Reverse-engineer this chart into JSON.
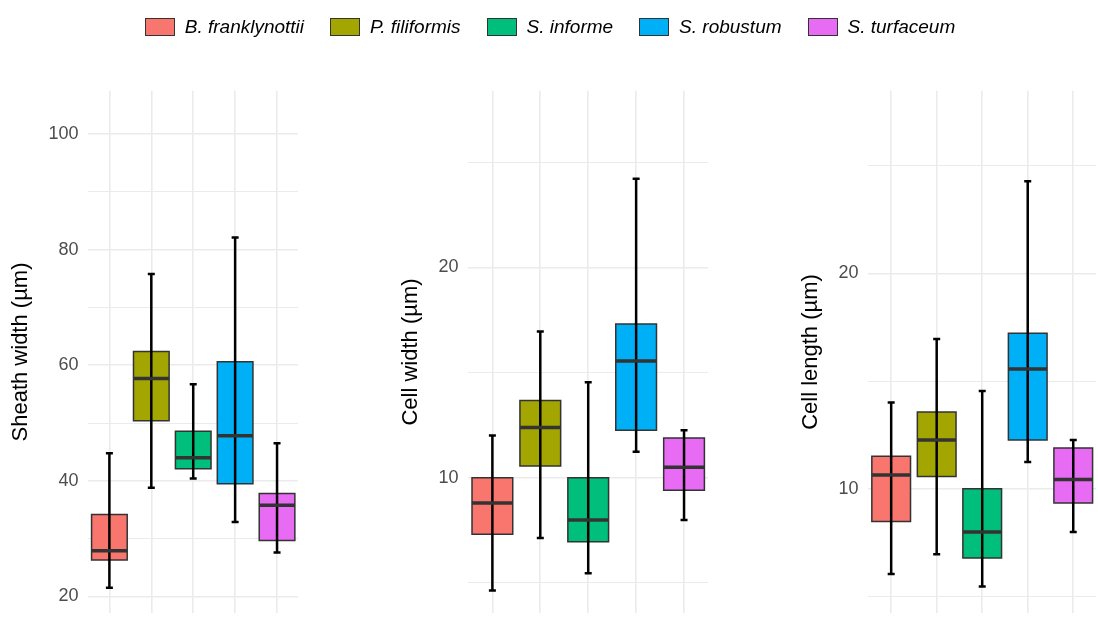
{
  "chart_data": [
    {
      "type": "box",
      "ylabel": "Sheath width (µm)",
      "categories": [
        null,
        null,
        null,
        null,
        null
      ],
      "ylim": [
        17.1,
        107.5
      ],
      "yticks": [
        20,
        {
          "value": 30,
          "label": null
        },
        40,
        {
          "value": 50,
          "label": null
        },
        60,
        {
          "value": 70,
          "label": null
        },
        80,
        {
          "value": 90,
          "label": null
        },
        100
      ],
      "grid": true,
      "legend": "top",
      "tick_labels": "y",
      "series": [
        {
          "name": "B. franklynottii",
          "color": "#f8766d",
          "boxes": [
            {
              "low": 21.5,
              "q1": 26.3,
              "median": 27.9,
              "q3": 34.2,
              "high": 44.8
            },
            null,
            null,
            null,
            null
          ]
        },
        {
          "name": "P. filiformis",
          "color": "#a3a500",
          "boxes": [
            null,
            {
              "low": 38.8,
              "q1": 50.4,
              "median": 57.7,
              "q3": 62.4,
              "high": 75.8
            },
            null,
            null,
            null
          ]
        },
        {
          "name": "S. informe",
          "color": "#00bf7d",
          "boxes": [
            null,
            null,
            {
              "low": 40.4,
              "q1": 42.1,
              "median": 44.0,
              "q3": 48.6,
              "high": 56.7
            },
            null,
            null
          ]
        },
        {
          "name": "S. robustum",
          "color": "#00b0f6",
          "boxes": [
            null,
            null,
            null,
            {
              "low": 32.9,
              "q1": 39.5,
              "median": 47.8,
              "q3": 60.6,
              "high": 82.1
            },
            null
          ]
        },
        {
          "name": "S. turfaceum",
          "color": "#e76bf3",
          "boxes": [
            null,
            null,
            null,
            null,
            {
              "low": 27.6,
              "q1": 29.7,
              "median": 35.8,
              "q3": 37.8,
              "high": 46.5
            }
          ]
        }
      ]
    },
    {
      "type": "box",
      "ylabel": "Cell width (µm)",
      "categories": [
        null,
        null,
        null,
        null,
        null
      ],
      "log": true,
      "ylim": [
        6.4,
        35.8
      ],
      "yticks": [
        {
          "value": 7.07,
          "label": null
        },
        10,
        {
          "value": 14.14,
          "label": null
        },
        20,
        {
          "value": 28.28,
          "label": null
        }
      ],
      "grid": true,
      "tick_labels": "y",
      "series": [
        {
          "color": "#f8766d",
          "boxes": [
            {
              "low": 6.9,
              "q1": 8.3,
              "median": 9.2,
              "q3": 10.0,
              "high": 11.5
            },
            null,
            null,
            null,
            null
          ]
        },
        {
          "color": "#a3a500",
          "boxes": [
            null,
            {
              "low": 8.2,
              "q1": 10.4,
              "median": 11.8,
              "q3": 12.9,
              "high": 16.2
            },
            null,
            null,
            null
          ]
        },
        {
          "color": "#00bf7d",
          "boxes": [
            null,
            null,
            {
              "low": 7.3,
              "q1": 8.1,
              "median": 8.7,
              "q3": 10.0,
              "high": 13.7
            },
            null,
            null
          ]
        },
        {
          "color": "#00b0f6",
          "boxes": [
            null,
            null,
            null,
            {
              "low": 10.9,
              "q1": 11.7,
              "median": 14.7,
              "q3": 16.6,
              "high": 26.8
            },
            null
          ]
        },
        {
          "color": "#e76bf3",
          "boxes": [
            null,
            null,
            null,
            null,
            {
              "low": 8.7,
              "q1": 9.6,
              "median": 10.35,
              "q3": 11.4,
              "high": 11.7
            }
          ]
        }
      ]
    },
    {
      "type": "box",
      "ylabel": "Cell length (µm)",
      "categories": [
        null,
        null,
        null,
        null,
        null
      ],
      "log": true,
      "ylim": [
        6.7,
        36
      ],
      "yticks": [
        {
          "value": 7.07,
          "label": null
        },
        10,
        {
          "value": 14.14,
          "label": null
        },
        20,
        {
          "value": 28.28,
          "label": null
        }
      ],
      "grid": true,
      "tick_labels": "y",
      "series": [
        {
          "color": "#f8766d",
          "boxes": [
            {
              "low": 7.6,
              "q1": 9.0,
              "median": 10.45,
              "q3": 11.1,
              "high": 13.2
            },
            null,
            null,
            null,
            null
          ]
        },
        {
          "color": "#a3a500",
          "boxes": [
            null,
            {
              "low": 8.1,
              "q1": 10.4,
              "median": 11.7,
              "q3": 12.8,
              "high": 16.2
            },
            null,
            null,
            null
          ]
        },
        {
          "color": "#00bf7d",
          "boxes": [
            null,
            null,
            {
              "low": 7.3,
              "q1": 8.0,
              "median": 8.7,
              "q3": 10.0,
              "high": 13.7
            },
            null,
            null
          ]
        },
        {
          "color": "#00b0f6",
          "boxes": [
            null,
            null,
            null,
            {
              "low": 10.9,
              "q1": 11.7,
              "median": 14.7,
              "q3": 16.5,
              "high": 26.9
            },
            null
          ]
        },
        {
          "color": "#e76bf3",
          "boxes": [
            null,
            null,
            null,
            null,
            {
              "low": 8.7,
              "q1": 9.55,
              "median": 10.3,
              "q3": 11.4,
              "high": 11.7
            }
          ]
        }
      ]
    }
  ]
}
